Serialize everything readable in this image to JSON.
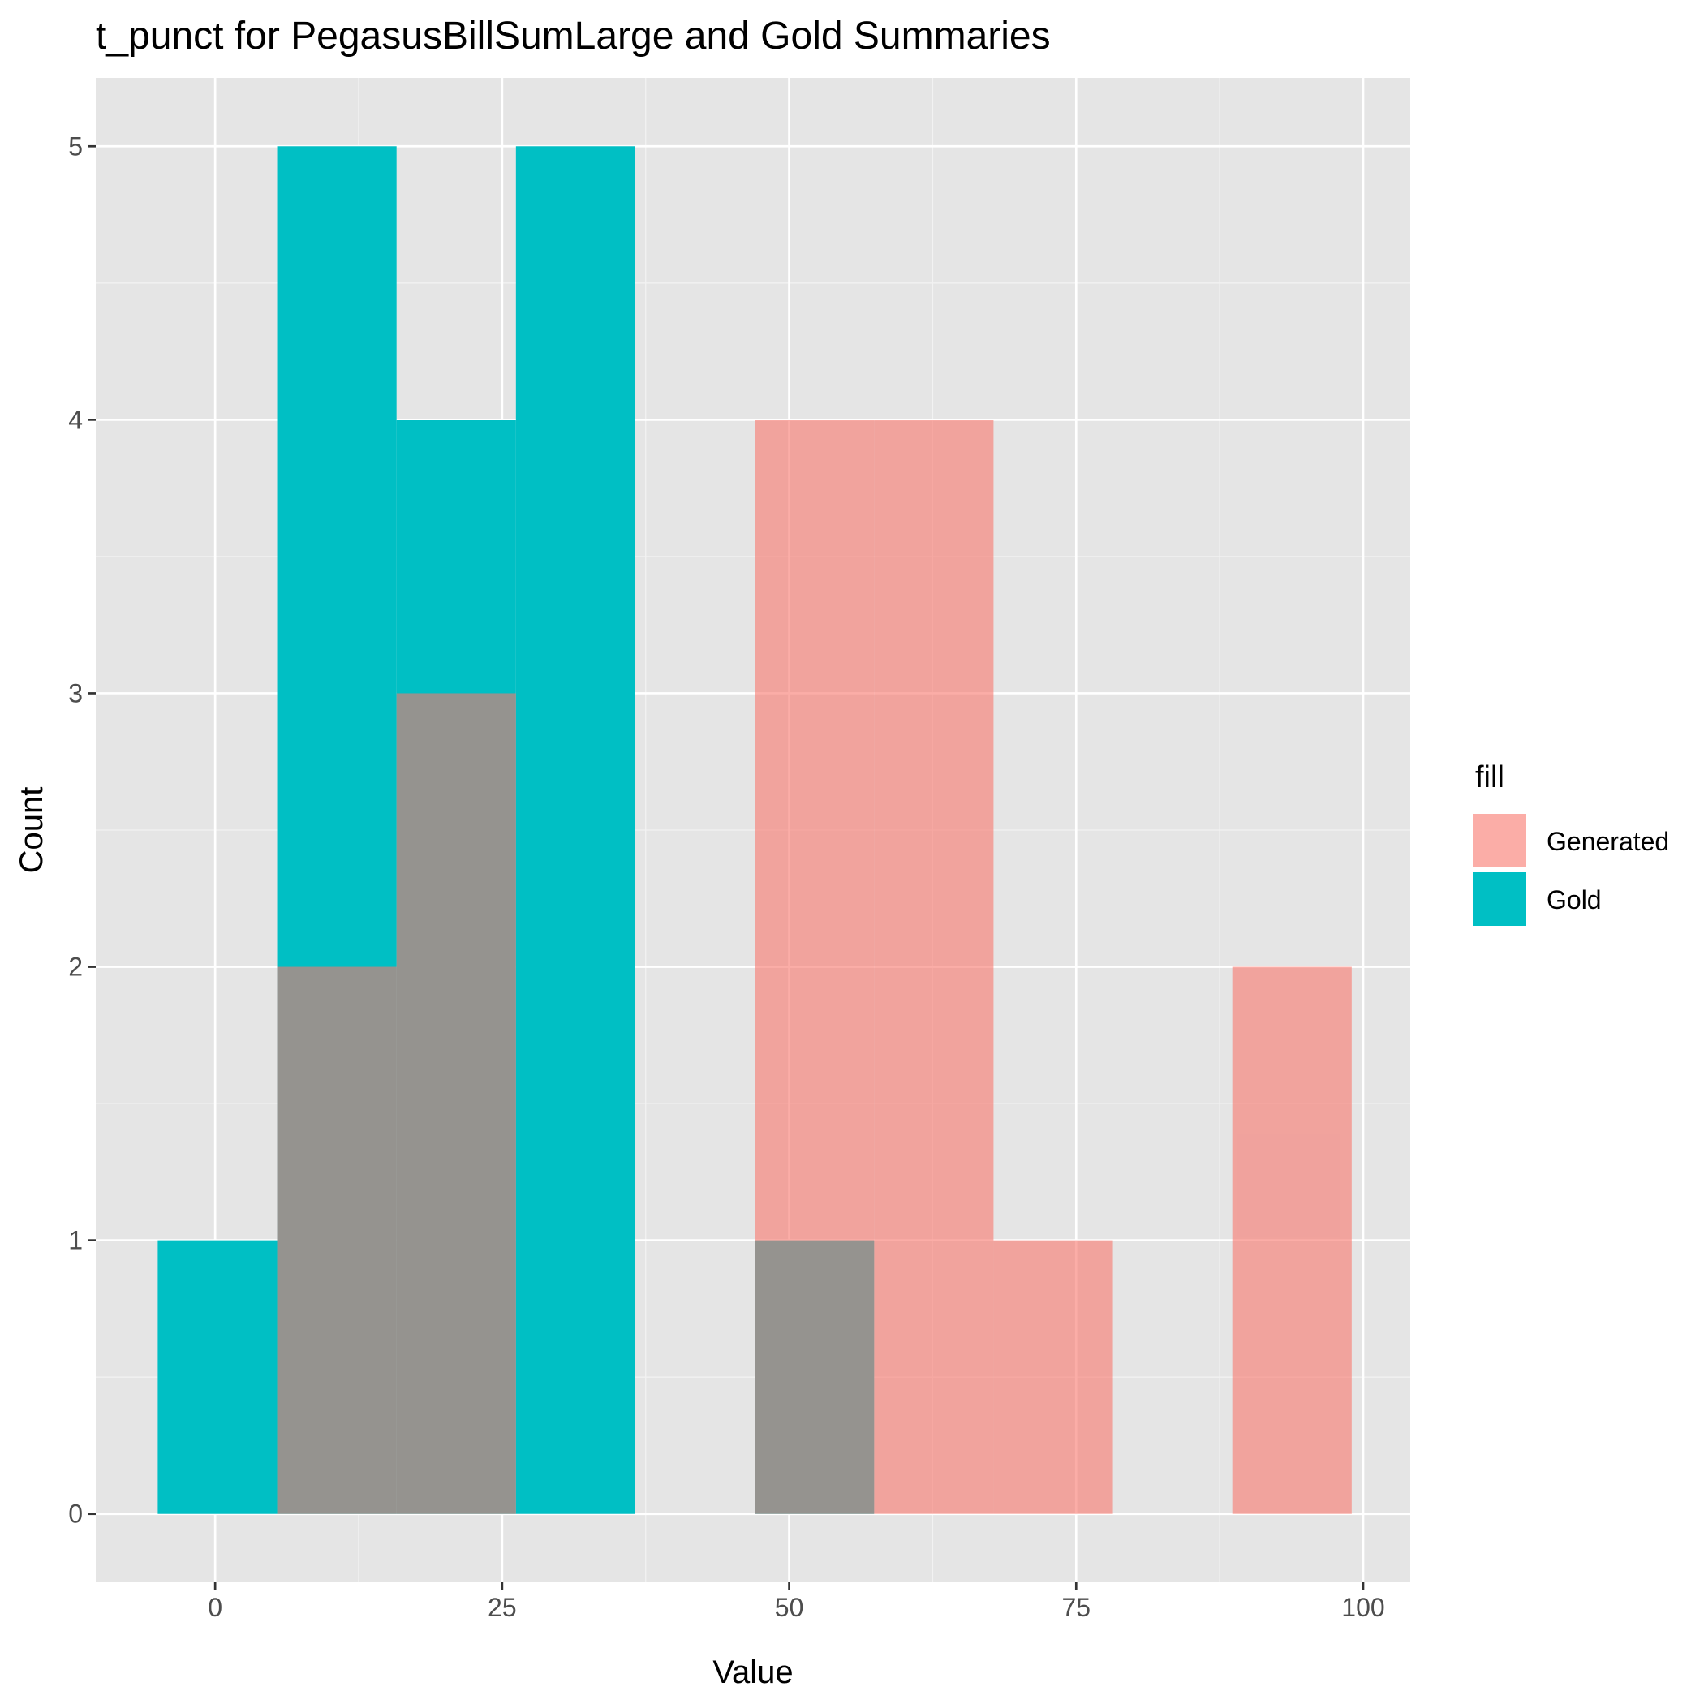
{
  "chart_data": {
    "type": "histogram",
    "title": "t_punct for PegasusBillSumLarge and Gold Summaries",
    "xlabel": "Value",
    "ylabel": "Count",
    "xlim": [
      -10.4,
      104.1
    ],
    "ylim": [
      -0.25,
      5.25
    ],
    "x_ticks": [
      0,
      25,
      50,
      75,
      100
    ],
    "y_ticks": [
      0,
      1,
      2,
      3,
      4,
      5
    ],
    "grid": true,
    "legend": {
      "title": "fill",
      "position": "right"
    },
    "series": [
      {
        "name": "Generated",
        "color": "#F8766D",
        "opacity": 0.6,
        "bins": [
          {
            "x0": 5.4,
            "x1": 15.8,
            "count": 2
          },
          {
            "x0": 15.8,
            "x1": 26.2,
            "count": 3
          },
          {
            "x0": 47.0,
            "x1": 57.4,
            "count": 4
          },
          {
            "x0": 57.4,
            "x1": 67.8,
            "count": 4
          },
          {
            "x0": 67.8,
            "x1": 78.2,
            "count": 1
          },
          {
            "x0": 88.6,
            "x1": 99.0,
            "count": 2
          }
        ]
      },
      {
        "name": "Gold",
        "color": "#00BFC4",
        "opacity": 1.0,
        "bins": [
          {
            "x0": -5.0,
            "x1": 5.4,
            "count": 1
          },
          {
            "x0": 5.4,
            "x1": 15.8,
            "count": 5
          },
          {
            "x0": 15.8,
            "x1": 26.2,
            "count": 4
          },
          {
            "x0": 26.2,
            "x1": 36.6,
            "count": 5
          },
          {
            "x0": 47.0,
            "x1": 57.4,
            "count": 1
          }
        ]
      }
    ]
  }
}
